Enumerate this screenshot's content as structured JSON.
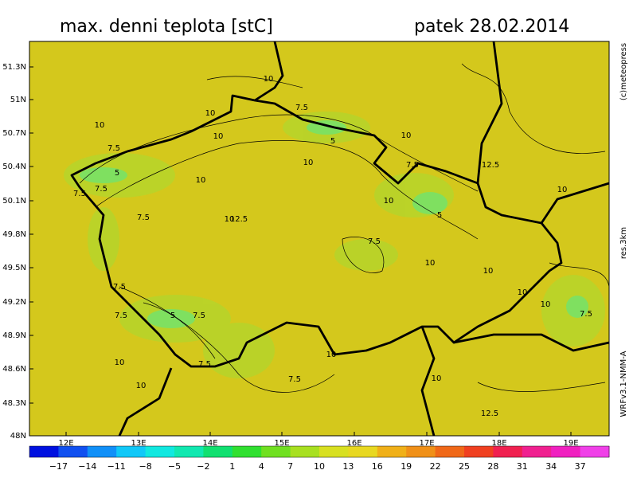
{
  "header": {
    "title": "max. denni teplota [stC]",
    "date": "patek 28.02.2014"
  },
  "credits": {
    "copyright": "(c)meteopress",
    "resolution": "res.3km",
    "model": "WRFv3.1-NMM-A"
  },
  "map": {
    "lat_labels": [
      "51.3N",
      "51N",
      "50.7N",
      "50.4N",
      "50.1N",
      "49.8N",
      "49.5N",
      "49.2N",
      "48.9N",
      "48.6N",
      "48.3N",
      "48N"
    ],
    "lon_labels": [
      "12E",
      "13E",
      "14E",
      "15E",
      "16E",
      "17E",
      "18E",
      "19E"
    ],
    "contour_labels": [
      "10",
      "7.5",
      "10",
      "10",
      "10",
      "5",
      "10",
      "7.5",
      "10",
      "5",
      "7.5",
      "7.5",
      "10",
      "12.5",
      "7.5",
      "10",
      "5",
      "12.5",
      "10",
      "7.5",
      "10",
      "10",
      "7.5",
      "7.5",
      "10",
      "5",
      "7.5",
      "10",
      "7.5",
      "7.5",
      "10",
      "10",
      "7.5",
      "10",
      "12.5",
      "7.5",
      "10",
      "10"
    ]
  },
  "colorbar": {
    "labels": [
      "−17",
      "−14",
      "−11",
      "−8",
      "−5",
      "−2",
      "1",
      "4",
      "7",
      "10",
      "13",
      "16",
      "19",
      "22",
      "25",
      "28",
      "31",
      "34",
      "37"
    ]
  }
}
